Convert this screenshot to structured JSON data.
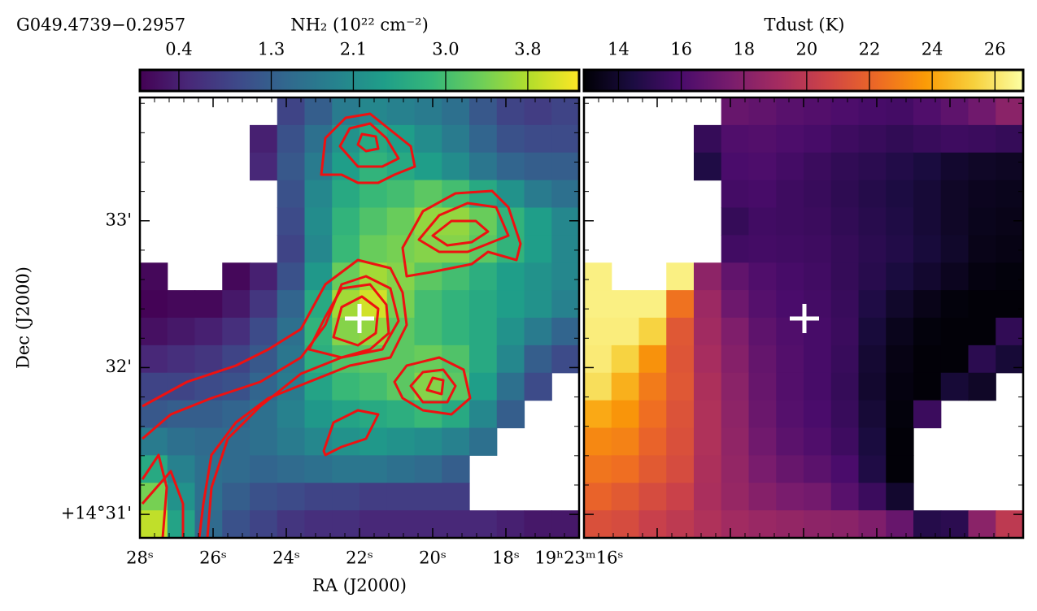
{
  "chart_data": [
    {
      "type": "heatmap",
      "title": "G049.4739−0.2957",
      "colorbar_label": "NH₂ (10²² cm⁻²)",
      "colormap": "viridis",
      "clim": [
        0.02,
        4.3
      ],
      "cticks": [
        0.4,
        1.3,
        2.1,
        {
          "value": 3.0,
          "label": "3.0"
        },
        3.8
      ],
      "xlabel": "RA (J2000)",
      "ylabel": "Dec (J2000)",
      "xlim": [
        28,
        16
      ],
      "ylim": [
        30.84,
        33.84
      ],
      "xticks": [
        {
          "value": 28,
          "label": "28ˢ"
        },
        {
          "value": 26,
          "label": "26ˢ"
        },
        {
          "value": 24,
          "label": "24ˢ"
        },
        {
          "value": 22,
          "label": "22ˢ"
        },
        {
          "value": 20,
          "label": "20ˢ"
        },
        {
          "value": 18,
          "label": "18ˢ"
        },
        {
          "value": 16,
          "label": "19ʰ23ᵐ16ˢ"
        }
      ],
      "yticks": [
        {
          "value": 31,
          "label": "+14°31'"
        },
        {
          "value": 32,
          "label": "32'"
        },
        {
          "value": 33,
          "label": "33'"
        }
      ],
      "values": [
        [
          null,
          null,
          null,
          null,
          null,
          0.9,
          1.3,
          1.8,
          2.0,
          1.9,
          1.8,
          1.6,
          1.2,
          0.9,
          0.8,
          0.9
        ],
        [
          null,
          null,
          null,
          null,
          0.4,
          1.1,
          1.6,
          2.2,
          2.6,
          2.4,
          2.1,
          1.8,
          1.4,
          1.1,
          1.0,
          1.0
        ],
        [
          null,
          null,
          null,
          null,
          0.5,
          1.2,
          1.8,
          2.4,
          2.8,
          2.6,
          2.4,
          2.1,
          1.7,
          1.4,
          1.3,
          1.3
        ],
        [
          null,
          null,
          null,
          null,
          null,
          1.1,
          2.0,
          2.6,
          2.9,
          3.0,
          3.2,
          3.0,
          2.6,
          2.2,
          1.8,
          1.6
        ],
        [
          null,
          null,
          null,
          null,
          null,
          1.0,
          2.1,
          2.8,
          3.1,
          3.3,
          3.6,
          3.6,
          3.3,
          2.8,
          2.4,
          2.0
        ],
        [
          null,
          null,
          null,
          null,
          null,
          0.9,
          2.0,
          2.9,
          3.3,
          3.4,
          3.5,
          3.5,
          3.2,
          2.8,
          2.4,
          2.0
        ],
        [
          0.1,
          null,
          null,
          0.1,
          0.4,
          1.1,
          2.3,
          3.3,
          3.7,
          3.5,
          3.2,
          3.0,
          2.7,
          2.4,
          2.2,
          2.0
        ],
        [
          0.05,
          0.1,
          0.1,
          0.3,
          0.7,
          1.4,
          2.6,
          3.7,
          4.0,
          3.4,
          3.0,
          2.8,
          2.6,
          2.4,
          2.2,
          1.9
        ],
        [
          0.2,
          0.3,
          0.4,
          0.6,
          1.0,
          1.6,
          2.8,
          3.5,
          3.6,
          3.2,
          3.0,
          2.8,
          2.6,
          2.2,
          1.8,
          1.4
        ],
        [
          0.5,
          0.6,
          0.7,
          0.9,
          1.2,
          1.7,
          2.7,
          3.1,
          3.2,
          3.2,
          3.3,
          3.1,
          2.6,
          2.0,
          1.3,
          1.0
        ],
        [
          0.9,
          0.9,
          1.0,
          1.1,
          1.4,
          1.8,
          2.5,
          2.9,
          3.0,
          3.2,
          3.5,
          3.2,
          2.4,
          1.6,
          1.0,
          null
        ],
        [
          1.2,
          1.3,
          1.3,
          1.4,
          1.6,
          1.9,
          2.3,
          2.5,
          2.6,
          2.7,
          2.9,
          2.6,
          2.0,
          1.3,
          null,
          null
        ],
        [
          1.8,
          1.6,
          1.5,
          1.5,
          1.6,
          1.8,
          2.0,
          2.2,
          2.3,
          2.2,
          2.1,
          1.9,
          1.6,
          null,
          null,
          null
        ],
        [
          2.6,
          1.9,
          1.6,
          1.5,
          1.4,
          1.5,
          1.6,
          1.7,
          1.7,
          1.6,
          1.5,
          1.3,
          null,
          null,
          null,
          null
        ],
        [
          3.4,
          2.2,
          1.6,
          1.3,
          1.1,
          1.0,
          0.9,
          0.9,
          0.8,
          0.8,
          0.8,
          0.8,
          null,
          null,
          null,
          null
        ],
        [
          3.9,
          2.5,
          1.5,
          1.1,
          0.9,
          0.7,
          0.6,
          0.6,
          0.5,
          0.5,
          0.5,
          0.5,
          0.5,
          0.4,
          0.3,
          0.3
        ]
      ]
    },
    {
      "type": "heatmap",
      "colorbar_label": "Tdust (K)",
      "colormap": "inferno",
      "clim": [
        12.9,
        26.9
      ],
      "cticks": [
        14,
        16,
        18,
        20,
        22,
        24,
        26
      ],
      "xlim": [
        28,
        16
      ],
      "ylim": [
        30.84,
        33.84
      ],
      "values": [
        [
          null,
          null,
          null,
          null,
          null,
          17.0,
          16.8,
          16.5,
          16.3,
          16.1,
          15.9,
          15.8,
          16.2,
          16.7,
          17.3,
          18.2
        ],
        [
          null,
          null,
          null,
          null,
          15.3,
          16.2,
          16.3,
          16.1,
          15.9,
          15.6,
          15.4,
          15.2,
          15.4,
          15.6,
          15.5,
          15.3
        ],
        [
          null,
          null,
          null,
          null,
          14.6,
          16.0,
          16.1,
          15.8,
          15.5,
          15.2,
          15.0,
          14.7,
          14.4,
          14.0,
          13.8,
          13.7
        ],
        [
          null,
          null,
          null,
          null,
          null,
          15.8,
          15.9,
          15.6,
          15.4,
          15.1,
          14.8,
          14.5,
          14.2,
          13.8,
          13.6,
          13.5
        ],
        [
          null,
          null,
          null,
          null,
          null,
          15.3,
          15.7,
          15.6,
          15.5,
          15.2,
          14.9,
          14.6,
          14.2,
          13.8,
          13.5,
          13.4
        ],
        [
          null,
          null,
          null,
          null,
          null,
          15.7,
          15.8,
          15.7,
          15.6,
          15.3,
          15.0,
          14.7,
          14.3,
          13.9,
          13.4,
          13.3
        ],
        [
          26.4,
          null,
          null,
          26.4,
          18.3,
          16.8,
          16.2,
          15.9,
          15.7,
          15.3,
          14.9,
          14.4,
          14.0,
          13.6,
          13.2,
          13.1
        ],
        [
          26.4,
          26.4,
          26.4,
          22.5,
          18.8,
          17.2,
          16.4,
          16.0,
          15.8,
          15.4,
          14.6,
          13.9,
          13.4,
          13.1,
          13.0,
          13.0
        ],
        [
          26.3,
          26.3,
          25.4,
          21.5,
          19.0,
          17.8,
          16.7,
          16.2,
          15.9,
          15.5,
          14.3,
          13.5,
          13.1,
          13.0,
          13.0,
          15.2
        ],
        [
          26.2,
          25.4,
          23.5,
          21.4,
          19.2,
          18.0,
          16.9,
          16.3,
          15.9,
          15.4,
          14.1,
          13.3,
          13.0,
          13.0,
          15.0,
          14.2
        ],
        [
          25.8,
          24.4,
          22.8,
          21.5,
          19.4,
          18.2,
          17.0,
          16.3,
          15.9,
          15.3,
          14.0,
          13.2,
          13.0,
          14.2,
          13.8,
          null
        ],
        [
          24.2,
          23.6,
          22.4,
          21.3,
          19.5,
          18.3,
          17.1,
          16.4,
          16.0,
          15.4,
          14.2,
          13.1,
          15.5,
          null,
          null,
          null
        ],
        [
          23.2,
          23.0,
          22.0,
          21.2,
          19.5,
          18.4,
          17.3,
          16.6,
          16.2,
          15.6,
          14.4,
          13.0,
          null,
          null,
          null,
          null
        ],
        [
          22.6,
          22.4,
          21.6,
          21.0,
          19.4,
          18.5,
          17.6,
          17.0,
          16.6,
          16.0,
          14.6,
          13.0,
          null,
          null,
          null,
          null
        ],
        [
          22.0,
          21.6,
          21.0,
          20.5,
          19.3,
          18.6,
          18.0,
          17.6,
          17.4,
          16.5,
          15.5,
          14.0,
          null,
          null,
          null,
          null
        ],
        [
          21.2,
          21.0,
          20.4,
          20.0,
          19.5,
          19.0,
          18.7,
          18.5,
          18.3,
          18.2,
          17.8,
          17.0,
          14.8,
          15.0,
          18.2,
          20.0
        ]
      ]
    }
  ]
}
